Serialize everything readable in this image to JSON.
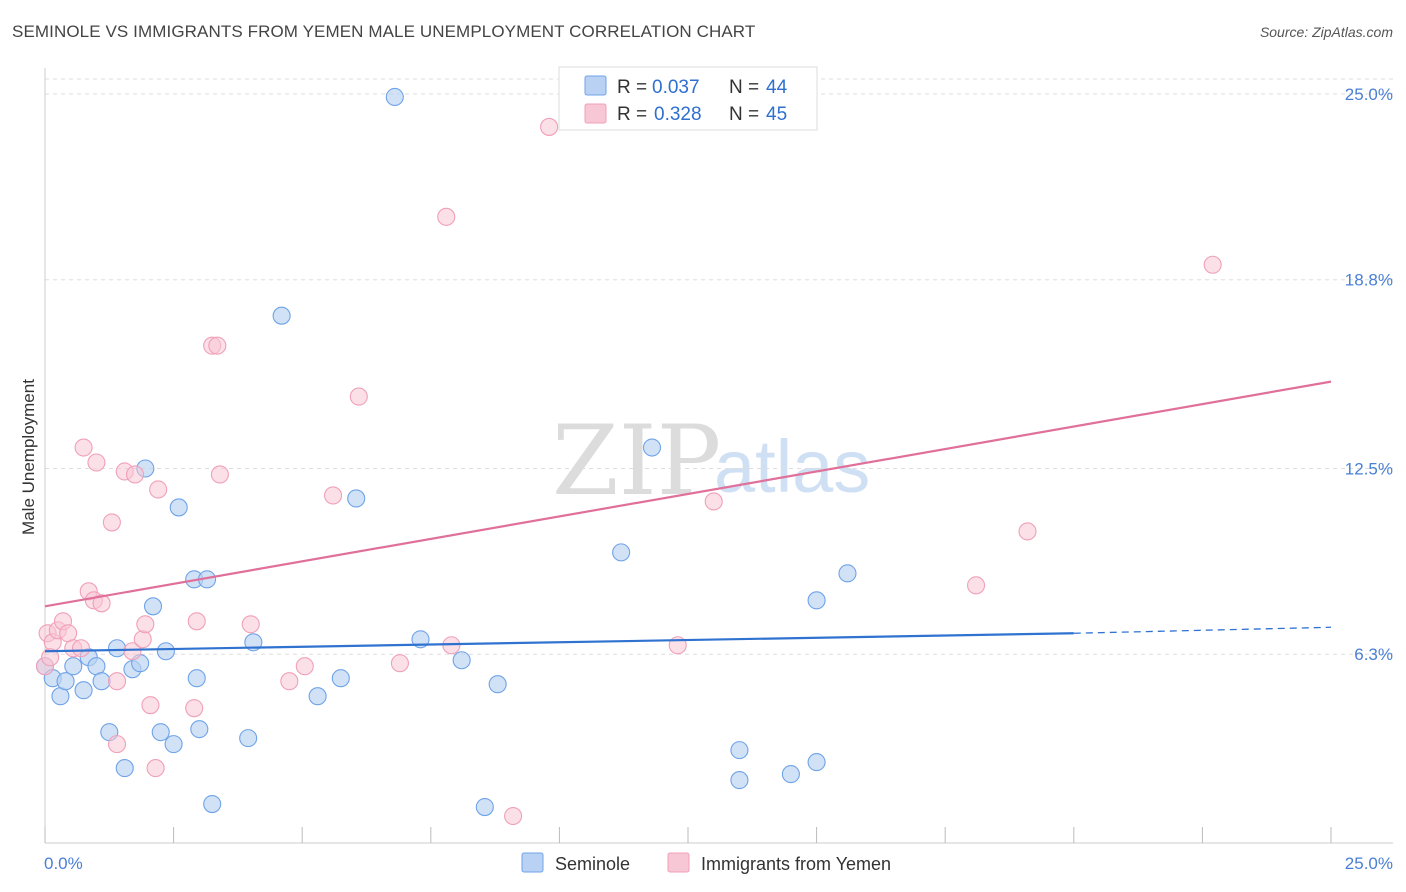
{
  "header": {
    "title": "SEMINOLE VS IMMIGRANTS FROM YEMEN MALE UNEMPLOYMENT CORRELATION CHART",
    "source": "Source: ZipAtlas.com"
  },
  "watermark": {
    "zip": "ZIP",
    "atlas": "atlas"
  },
  "colors": {
    "seminole": "#6fa3e8",
    "seminole_fill": "#b9d2f3",
    "seminole_line": "#2f72d0",
    "yemen": "#f0a0b8",
    "yemen_fill": "#f7c7d5",
    "yemen_line": "#e0709a",
    "grid": "#dddddd",
    "tick_text": "#4a7fd4"
  },
  "legend_top": {
    "rows": [
      {
        "r_label": "R =",
        "r_value": "0.037",
        "n_label": "N =",
        "n_value": "44"
      },
      {
        "r_label": "R =",
        "r_value": "0.328",
        "n_label": "N =",
        "n_value": "45"
      }
    ]
  },
  "chart_data": {
    "type": "scatter",
    "title": "SEMINOLE VS IMMIGRANTS FROM YEMEN MALE UNEMPLOYMENT CORRELATION CHART",
    "xlabel": "",
    "ylabel": "Male Unemployment",
    "xlim": [
      0,
      25
    ],
    "ylim": [
      0,
      25.5
    ],
    "x_tick_labels": [
      "0.0%",
      "25.0%"
    ],
    "y_ticks": [
      6.3,
      12.5,
      18.8,
      25.0
    ],
    "y_tick_labels": [
      "6.3%",
      "12.5%",
      "18.8%",
      "25.0%"
    ],
    "legend": [
      "Seminole",
      "Immigrants from Yemen"
    ],
    "series": [
      {
        "name": "Seminole",
        "r": 0.037,
        "n": 44,
        "trend": {
          "x0": 0,
          "y0": 6.4,
          "x1": 20,
          "y1": 7.0,
          "dashed_to_x": 25,
          "dashed_to_y": 7.2
        },
        "points": [
          [
            0.0,
            5.9
          ],
          [
            0.15,
            5.5
          ],
          [
            0.3,
            4.9
          ],
          [
            0.4,
            5.4
          ],
          [
            0.55,
            5.9
          ],
          [
            0.75,
            5.1
          ],
          [
            0.85,
            6.2
          ],
          [
            1.0,
            5.9
          ],
          [
            1.1,
            5.4
          ],
          [
            1.25,
            3.7
          ],
          [
            1.4,
            6.5
          ],
          [
            1.55,
            2.5
          ],
          [
            1.7,
            5.8
          ],
          [
            1.85,
            6.0
          ],
          [
            1.95,
            12.5
          ],
          [
            2.1,
            7.9
          ],
          [
            2.25,
            3.7
          ],
          [
            2.35,
            6.4
          ],
          [
            2.5,
            3.3
          ],
          [
            2.6,
            11.2
          ],
          [
            2.9,
            8.8
          ],
          [
            2.95,
            5.5
          ],
          [
            3.0,
            3.8
          ],
          [
            3.15,
            8.8
          ],
          [
            3.25,
            1.3
          ],
          [
            3.95,
            3.5
          ],
          [
            4.05,
            6.7
          ],
          [
            4.6,
            17.6
          ],
          [
            5.3,
            4.9
          ],
          [
            5.75,
            5.5
          ],
          [
            6.05,
            11.5
          ],
          [
            6.8,
            24.9
          ],
          [
            7.3,
            6.8
          ],
          [
            8.1,
            6.1
          ],
          [
            8.8,
            5.3
          ],
          [
            8.55,
            1.2
          ],
          [
            11.2,
            9.7
          ],
          [
            11.8,
            13.2
          ],
          [
            13.5,
            3.1
          ],
          [
            13.5,
            2.1
          ],
          [
            14.5,
            2.3
          ],
          [
            15.0,
            8.1
          ],
          [
            15.0,
            2.7
          ],
          [
            15.6,
            9.0
          ]
        ]
      },
      {
        "name": "Immigrants from Yemen",
        "r": 0.328,
        "n": 45,
        "trend": {
          "x0": 0,
          "y0": 7.9,
          "x1": 25,
          "y1": 15.4
        },
        "points": [
          [
            0.0,
            5.9
          ],
          [
            0.05,
            7.0
          ],
          [
            0.15,
            6.7
          ],
          [
            0.25,
            7.1
          ],
          [
            0.35,
            7.4
          ],
          [
            0.45,
            7.0
          ],
          [
            0.55,
            6.5
          ],
          [
            0.7,
            6.5
          ],
          [
            0.75,
            13.2
          ],
          [
            0.85,
            8.4
          ],
          [
            0.95,
            8.1
          ],
          [
            1.0,
            12.7
          ],
          [
            1.1,
            8.0
          ],
          [
            1.3,
            10.7
          ],
          [
            1.4,
            5.4
          ],
          [
            1.4,
            3.3
          ],
          [
            1.55,
            12.4
          ],
          [
            1.7,
            6.4
          ],
          [
            1.75,
            12.3
          ],
          [
            1.9,
            6.8
          ],
          [
            1.95,
            7.3
          ],
          [
            2.05,
            4.6
          ],
          [
            2.15,
            2.5
          ],
          [
            2.2,
            11.8
          ],
          [
            2.9,
            4.5
          ],
          [
            2.95,
            7.4
          ],
          [
            3.25,
            16.6
          ],
          [
            3.35,
            16.6
          ],
          [
            3.4,
            12.3
          ],
          [
            4.0,
            7.3
          ],
          [
            4.75,
            5.4
          ],
          [
            5.05,
            5.9
          ],
          [
            5.6,
            11.6
          ],
          [
            6.1,
            14.9
          ],
          [
            6.9,
            6.0
          ],
          [
            7.8,
            20.9
          ],
          [
            7.9,
            6.6
          ],
          [
            9.1,
            0.9
          ],
          [
            9.8,
            23.9
          ],
          [
            12.3,
            6.6
          ],
          [
            13.0,
            11.4
          ],
          [
            18.1,
            8.6
          ],
          [
            19.1,
            10.4
          ],
          [
            22.7,
            19.3
          ],
          [
            0.1,
            6.2
          ]
        ]
      }
    ]
  }
}
